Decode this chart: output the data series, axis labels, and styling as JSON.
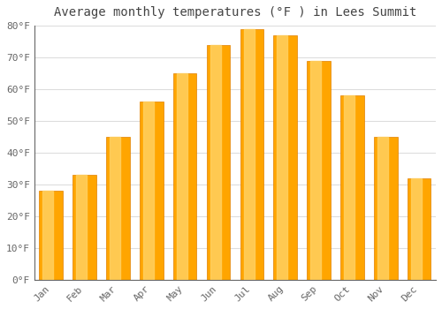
{
  "title": "Average monthly temperatures (°F ) in Lees Summit",
  "months": [
    "Jan",
    "Feb",
    "Mar",
    "Apr",
    "May",
    "Jun",
    "Jul",
    "Aug",
    "Sep",
    "Oct",
    "Nov",
    "Dec"
  ],
  "values": [
    28,
    33,
    45,
    56,
    65,
    74,
    79,
    77,
    69,
    58,
    45,
    32
  ],
  "bar_color_main": "#FFA500",
  "bar_color_light": "#FFD060",
  "bar_color_edge": "#E08000",
  "background_color": "#FFFFFF",
  "grid_color": "#DDDDDD",
  "ylim": [
    0,
    80
  ],
  "yticks": [
    0,
    10,
    20,
    30,
    40,
    50,
    60,
    70,
    80
  ],
  "ytick_labels": [
    "0°F",
    "10°F",
    "20°F",
    "30°F",
    "40°F",
    "50°F",
    "60°F",
    "70°F",
    "80°F"
  ],
  "title_fontsize": 10,
  "tick_fontsize": 8,
  "title_color": "#444444",
  "tick_color": "#666666",
  "spine_color": "#666666"
}
